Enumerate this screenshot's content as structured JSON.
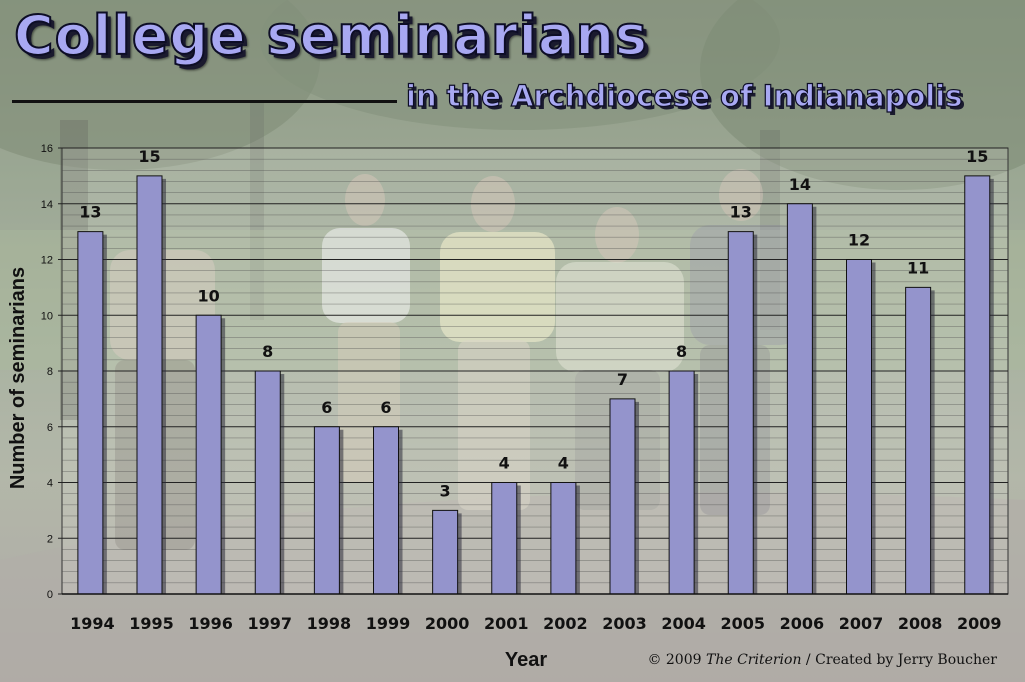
{
  "chart_data": {
    "type": "bar",
    "title": "College seminarians",
    "subtitle": "in the Archdiocese of Indianapolis",
    "xlabel": "Year",
    "ylabel": "Number of seminarians",
    "ylim": [
      0,
      16
    ],
    "yticks": [
      0,
      2,
      4,
      6,
      8,
      10,
      12,
      14,
      16
    ],
    "grid": true,
    "categories": [
      "1994",
      "1995",
      "1996",
      "1997",
      "1998",
      "1999",
      "2000",
      "2001",
      "2002",
      "2003",
      "2004",
      "2005",
      "2006",
      "2007",
      "2008",
      "2009"
    ],
    "values": [
      13,
      15,
      10,
      8,
      6,
      6,
      3,
      4,
      4,
      7,
      8,
      13,
      14,
      12,
      11,
      15
    ],
    "bar_color": "#9494cc",
    "title_color": "#a8a8f2"
  },
  "credit": {
    "prefix": "© 2009 ",
    "publication": "The Criterion",
    "suffix": " / Created by Jerry Boucher"
  }
}
